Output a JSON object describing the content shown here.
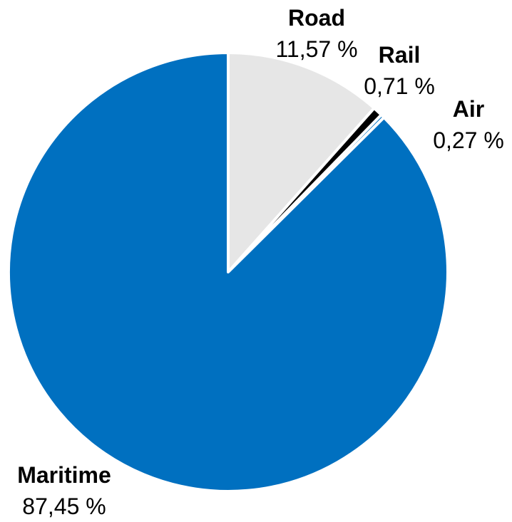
{
  "chart_data": {
    "type": "pie",
    "title": "",
    "unit": "%",
    "start": "12 o'clock, clockwise",
    "slices": [
      {
        "name": "Road",
        "value": 11.57,
        "label": "11,57 %",
        "color": "#e6e6e6"
      },
      {
        "name": "Rail",
        "value": 0.71,
        "label": "0,71 %",
        "color": "#000000"
      },
      {
        "name": "Air",
        "value": 0.27,
        "label": "0,27 %",
        "color": "#0070c0"
      },
      {
        "name": "Maritime",
        "value": 87.45,
        "label": "87,45 %",
        "color": "#0070c0"
      }
    ]
  }
}
